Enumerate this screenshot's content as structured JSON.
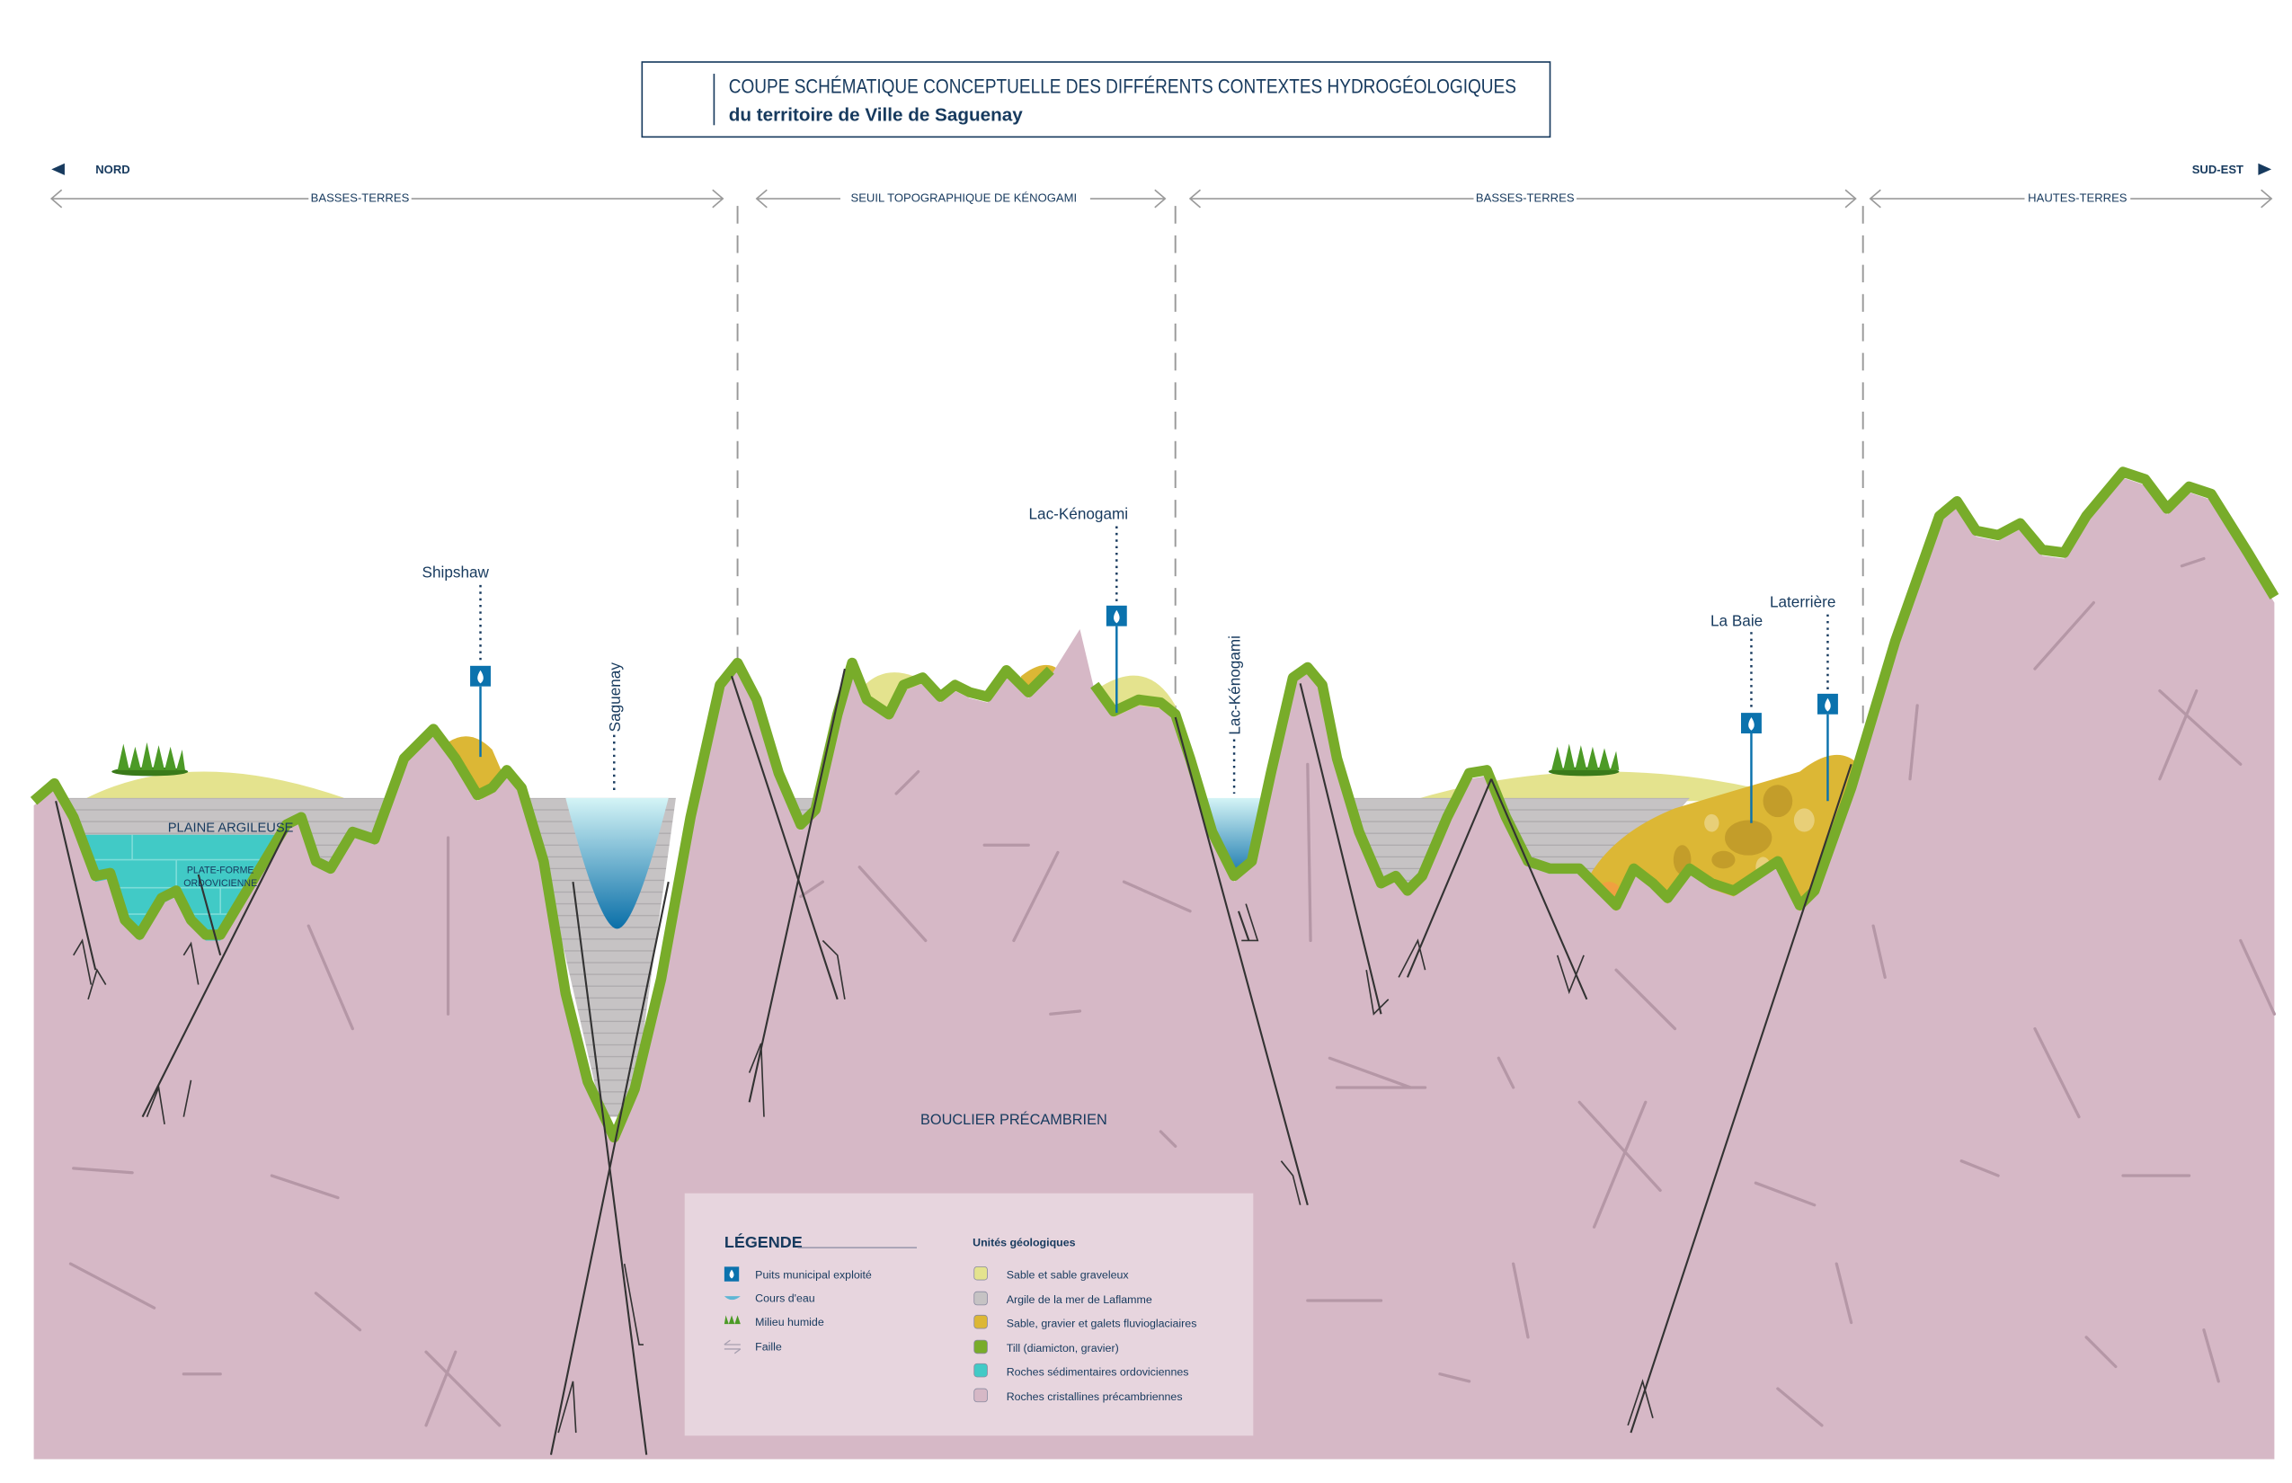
{
  "title": {
    "line1": "COUPE SCHÉMATIQUE CONCEPTUELLE DES DIFFÉRENTS CONTEXTES HYDROGÉOLOGIQUES",
    "line2": "du territoire de Ville de Saguenay"
  },
  "directions": {
    "left": "NORD",
    "right": "SUD-EST"
  },
  "zones": [
    "BASSES-TERRES",
    "SEUIL TOPOGRAPHIQUE DE KÉNOGAMI",
    "BASSES-TERRES",
    "HAUTES-TERRES"
  ],
  "places": {
    "shipshaw": "Shipshaw",
    "saguenay": "Saguenay",
    "lac_kenogami_well": "Lac-Kénogami",
    "lac_kenogami_lake": "Lac-Kénogami",
    "la_baie": "La Baie",
    "laterriere": "Laterrière"
  },
  "units": {
    "plaine": "PLAINE ARGILEUSE",
    "plateforme_1": "PLATE-FORME",
    "plateforme_2": "ORDOVICIENNE",
    "bouclier": "BOUCLIER PRÉCAMBRIEN"
  },
  "legend": {
    "title": "LÉGENDE",
    "symbols": [
      "Puits municipal exploité",
      "Cours d'eau",
      "Milieu humide",
      "Faille"
    ],
    "units_title": "Unités géologiques",
    "units": [
      {
        "label": "Sable et sable graveleux",
        "color": "#e4e38e"
      },
      {
        "label": "Argile de la mer de Laflamme",
        "color": "#c6c3c4"
      },
      {
        "label": "Sable, gravier et galets fluvioglaciaires",
        "color": "#dcb735"
      },
      {
        "label": "Till (diamicton, gravier)",
        "color": "#78ac2a"
      },
      {
        "label": "Roches sédimentaires ordoviciennes",
        "color": "#41cac6"
      },
      {
        "label": "Roches cristallines précambriennes",
        "color": "#d6b8c6"
      }
    ]
  },
  "colors": {
    "navy": "#173a5e",
    "well": "#0b72ad",
    "rock": "#d6b8c6",
    "till": "#78ac2a"
  }
}
